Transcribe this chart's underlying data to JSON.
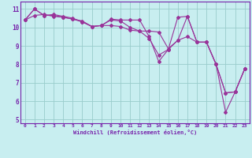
{
  "bg_color": "#c8eef0",
  "grid_color": "#99cccc",
  "line_color": "#993399",
  "axis_color": "#7722aa",
  "label_color": "#7722aa",
  "ylim": [
    4.8,
    11.4
  ],
  "xlim": [
    -0.5,
    23.5
  ],
  "yticks": [
    5,
    6,
    7,
    8,
    9,
    10,
    11
  ],
  "xticks": [
    0,
    1,
    2,
    3,
    4,
    5,
    6,
    7,
    8,
    9,
    10,
    11,
    12,
    13,
    14,
    15,
    16,
    17,
    18,
    19,
    20,
    21,
    22,
    23
  ],
  "xlabel": "Windchill (Refroidissement éolien,°C)",
  "series": [
    [
      10.4,
      11.0,
      10.65,
      10.7,
      10.6,
      10.5,
      10.3,
      10.05,
      10.1,
      10.45,
      10.4,
      10.4,
      10.4,
      9.5,
      8.15,
      8.8,
      10.55,
      10.6,
      9.2,
      9.2,
      8.0,
      6.45,
      6.5,
      7.75
    ],
    [
      10.4,
      10.65,
      10.7,
      10.6,
      10.55,
      10.45,
      10.35,
      10.05,
      10.1,
      10.1,
      10.05,
      9.85,
      9.8,
      9.8,
      9.75,
      8.85,
      9.3,
      9.5,
      9.2,
      9.2,
      8.0,
      6.45,
      6.5,
      7.75
    ],
    [
      10.4,
      11.0,
      10.65,
      10.65,
      10.55,
      10.45,
      10.3,
      10.05,
      10.1,
      10.4,
      10.35,
      10.0,
      9.8,
      9.4,
      8.5,
      8.8,
      9.3,
      10.6,
      9.2,
      9.2,
      8.0,
      5.4,
      6.5,
      7.75
    ]
  ]
}
